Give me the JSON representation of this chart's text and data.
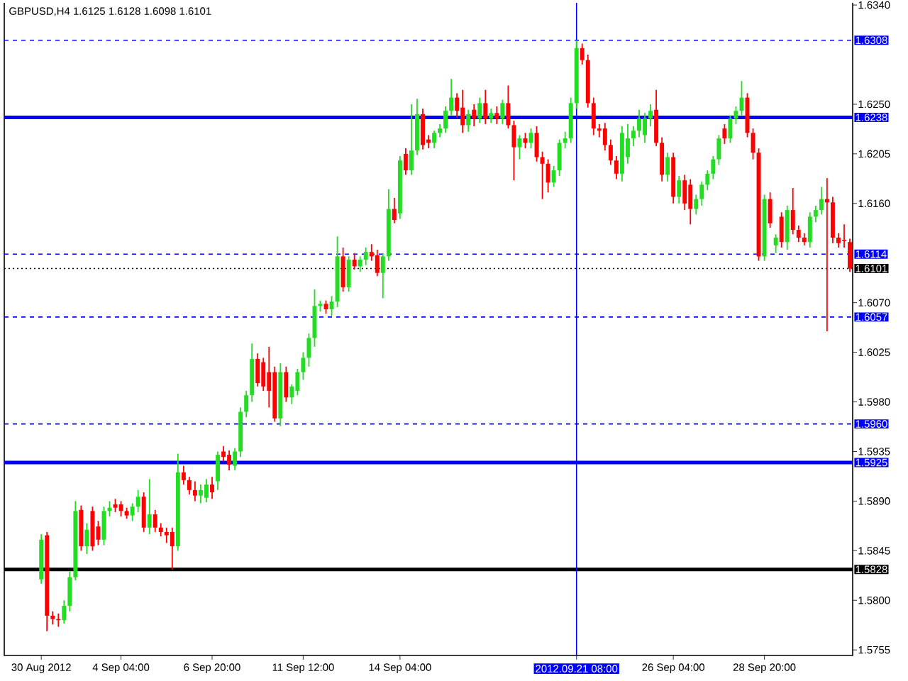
{
  "chart_data": {
    "type": "candlestick",
    "title": "GBPUSD,H4  1.6125 1.6128 1.6098 1.6101",
    "categories": [
      "30 Aug 2012",
      null,
      null,
      null,
      null,
      null,
      null,
      null,
      null,
      null,
      null,
      null,
      null,
      null,
      "4 Sep 04:00",
      null,
      null,
      null,
      null,
      null,
      null,
      null,
      null,
      null,
      null,
      null,
      null,
      null,
      null,
      null,
      "6 Sep 20:00",
      null,
      null,
      null,
      null,
      null,
      null,
      null,
      null,
      null,
      null,
      null,
      null,
      null,
      null,
      null,
      "11 Sep 12:00",
      null,
      null,
      null,
      null,
      null,
      null,
      null,
      null,
      null,
      null,
      null,
      null,
      null,
      null,
      null,
      null,
      "14 Sep 04:00",
      null,
      null,
      null,
      null,
      null,
      null,
      null,
      null,
      null,
      null,
      null,
      null,
      null,
      null,
      null,
      null,
      null,
      null,
      null,
      null,
      null,
      null,
      null,
      null,
      null,
      null,
      null,
      null,
      null,
      null,
      "2012.09.21 08:00",
      null,
      null,
      null,
      null,
      null,
      null,
      null,
      null,
      null,
      null,
      null,
      null,
      null,
      null,
      null,
      null,
      "26 Sep 04:00",
      null,
      null,
      null,
      null,
      null,
      null,
      null,
      null,
      null,
      null,
      null,
      null,
      null,
      null,
      null,
      "28 Sep 20:00",
      null,
      null,
      null,
      null,
      null,
      null,
      null,
      null,
      null,
      null,
      null,
      null,
      null,
      null,
      null
    ],
    "ohlc": [
      [
        1.5819,
        1.586,
        1.5815,
        1.5855
      ],
      [
        1.5859,
        1.5862,
        1.5772,
        1.5786
      ],
      [
        1.5786,
        1.579,
        1.5778,
        1.5783
      ],
      [
        1.5783,
        1.5788,
        1.5776,
        1.5782
      ],
      [
        1.5782,
        1.58,
        1.5779,
        1.5795
      ],
      [
        1.5795,
        1.5826,
        1.579,
        1.5821
      ],
      [
        1.5821,
        1.589,
        1.5818,
        1.5881
      ],
      [
        1.5882,
        1.5886,
        1.5845,
        1.5849
      ],
      [
        1.5849,
        1.587,
        1.5842,
        1.5864
      ],
      [
        1.5881,
        1.5885,
        1.5845,
        1.5849
      ],
      [
        1.5867,
        1.5872,
        1.585,
        1.5855
      ],
      [
        1.5855,
        1.5885,
        1.585,
        1.5881
      ],
      [
        1.5881,
        1.589,
        1.5876,
        1.5884
      ],
      [
        1.5887,
        1.5892,
        1.588,
        1.5884
      ],
      [
        1.5887,
        1.589,
        1.5876,
        1.5881
      ],
      [
        1.5881,
        1.5884,
        1.5874,
        1.5877
      ],
      [
        1.5877,
        1.5888,
        1.5872,
        1.5885
      ],
      [
        1.5885,
        1.59,
        1.588,
        1.5894
      ],
      [
        1.5894,
        1.5898,
        1.5862,
        1.5866
      ],
      [
        1.5866,
        1.591,
        1.586,
        1.5878
      ],
      [
        1.5878,
        1.5882,
        1.5862,
        1.5866
      ],
      [
        1.5866,
        1.587,
        1.5858,
        1.5862
      ],
      [
        1.5862,
        1.5866,
        1.5852,
        1.5859
      ],
      [
        1.5862,
        1.5866,
        1.5828,
        1.5849
      ],
      [
        1.5849,
        1.5933,
        1.5845,
        1.5916
      ],
      [
        1.5916,
        1.5922,
        1.5905,
        1.5909
      ],
      [
        1.5909,
        1.5912,
        1.5896,
        1.59
      ],
      [
        1.59,
        1.5908,
        1.589,
        1.5895
      ],
      [
        1.5895,
        1.5905,
        1.5888,
        1.59
      ],
      [
        1.5893,
        1.591,
        1.5889,
        1.5905
      ],
      [
        1.5905,
        1.5912,
        1.5892,
        1.5898
      ],
      [
        1.5908,
        1.5935,
        1.59,
        1.5932
      ],
      [
        1.5935,
        1.594,
        1.5926,
        1.593
      ],
      [
        1.5932,
        1.5936,
        1.5918,
        1.5923
      ],
      [
        1.5922,
        1.5938,
        1.5918,
        1.5935
      ],
      [
        1.5935,
        1.5975,
        1.593,
        1.5971
      ],
      [
        1.5971,
        1.599,
        1.5966,
        1.5986
      ],
      [
        1.5986,
        1.6033,
        1.598,
        1.6019
      ],
      [
        1.6019,
        1.6024,
        1.5994,
        1.5997
      ],
      [
        1.6016,
        1.602,
        1.599,
        1.5994
      ],
      [
        1.6007,
        1.603,
        1.5975,
        1.599
      ],
      [
        1.6007,
        1.6012,
        1.5962,
        1.5965
      ],
      [
        1.5965,
        1.6015,
        1.5958,
        1.6007
      ],
      [
        1.6007,
        1.6012,
        1.598,
        1.5984
      ],
      [
        1.5984,
        1.5996,
        1.5978,
        1.5994
      ],
      [
        1.599,
        1.601,
        1.5986,
        1.6007
      ],
      [
        1.6007,
        1.6025,
        1.6,
        1.602
      ],
      [
        1.602,
        1.6042,
        1.6012,
        1.6038
      ],
      [
        1.6038,
        1.6082,
        1.603,
        1.6067
      ],
      [
        1.6067,
        1.6072,
        1.6062,
        1.6069
      ],
      [
        1.6069,
        1.6072,
        1.606,
        1.6064
      ],
      [
        1.6064,
        1.6076,
        1.6058,
        1.6071
      ],
      [
        1.6071,
        1.613,
        1.6066,
        1.6112
      ],
      [
        1.6112,
        1.612,
        1.608,
        1.6084
      ],
      [
        1.6084,
        1.6112,
        1.608,
        1.6109
      ],
      [
        1.6109,
        1.6115,
        1.61,
        1.6103
      ],
      [
        1.6103,
        1.6112,
        1.6098,
        1.6109
      ],
      [
        1.6109,
        1.612,
        1.6104,
        1.6116
      ],
      [
        1.6116,
        1.6123,
        1.6108,
        1.6112
      ],
      [
        1.6113,
        1.6118,
        1.6094,
        1.6097
      ],
      [
        1.6097,
        1.6115,
        1.6074,
        1.6112
      ],
      [
        1.6112,
        1.6173,
        1.6108,
        1.6155
      ],
      [
        1.6155,
        1.6165,
        1.6142,
        1.6145
      ],
      [
        1.6151,
        1.6203,
        1.6146,
        1.6199
      ],
      [
        1.6205,
        1.621,
        1.6186,
        1.619
      ],
      [
        1.619,
        1.625,
        1.6186,
        1.6208
      ],
      [
        1.6208,
        1.6255,
        1.6204,
        1.6241
      ],
      [
        1.6241,
        1.6246,
        1.6209,
        1.6213
      ],
      [
        1.6218,
        1.6222,
        1.621,
        1.6215
      ],
      [
        1.6215,
        1.6226,
        1.621,
        1.6224
      ],
      [
        1.6224,
        1.6232,
        1.622,
        1.6228
      ],
      [
        1.6228,
        1.6248,
        1.6224,
        1.6244
      ],
      [
        1.6244,
        1.6273,
        1.624,
        1.6256
      ],
      [
        1.6256,
        1.626,
        1.6238,
        1.6244
      ],
      [
        1.6247,
        1.6263,
        1.6224,
        1.6231
      ],
      [
        1.6231,
        1.6245,
        1.6225,
        1.6241
      ],
      [
        1.6245,
        1.625,
        1.623,
        1.6237
      ],
      [
        1.6237,
        1.6256,
        1.6233,
        1.6251
      ],
      [
        1.6251,
        1.6263,
        1.6232,
        1.6237
      ],
      [
        1.6237,
        1.6246,
        1.6233,
        1.6242
      ],
      [
        1.6242,
        1.6248,
        1.6232,
        1.6237
      ],
      [
        1.6237,
        1.6254,
        1.6232,
        1.6251
      ],
      [
        1.6251,
        1.6267,
        1.6228,
        1.6231
      ],
      [
        1.6231,
        1.6235,
        1.6181,
        1.6211
      ],
      [
        1.6211,
        1.6222,
        1.62,
        1.6219
      ],
      [
        1.6219,
        1.6224,
        1.621,
        1.6215
      ],
      [
        1.6215,
        1.6228,
        1.621,
        1.6224
      ],
      [
        1.6224,
        1.623,
        1.6198,
        1.6202
      ],
      [
        1.6202,
        1.6207,
        1.6164,
        1.6196
      ],
      [
        1.6196,
        1.62,
        1.617,
        1.6179
      ],
      [
        1.6179,
        1.6194,
        1.6175,
        1.619
      ],
      [
        1.619,
        1.6218,
        1.6185,
        1.6215
      ],
      [
        1.6215,
        1.6225,
        1.621,
        1.6219
      ],
      [
        1.6219,
        1.6256,
        1.6215,
        1.6251
      ],
      [
        1.6251,
        1.6308,
        1.6246,
        1.6301
      ],
      [
        1.6301,
        1.6305,
        1.6286,
        1.629
      ],
      [
        1.629,
        1.6295,
        1.6247,
        1.6251
      ],
      [
        1.6251,
        1.6256,
        1.6222,
        1.6228
      ],
      [
        1.6228,
        1.6232,
        1.622,
        1.6226
      ],
      [
        1.6228,
        1.6233,
        1.6208,
        1.6213
      ],
      [
        1.6213,
        1.6218,
        1.6195,
        1.6199
      ],
      [
        1.6199,
        1.6203,
        1.6182,
        1.6187
      ],
      [
        1.6187,
        1.623,
        1.618,
        1.6224
      ],
      [
        1.6202,
        1.6232,
        1.6196,
        1.6219
      ],
      [
        1.6219,
        1.623,
        1.6212,
        1.6226
      ],
      [
        1.6226,
        1.6245,
        1.622,
        1.6237
      ],
      [
        1.6222,
        1.6242,
        1.6215,
        1.6237
      ],
      [
        1.6237,
        1.625,
        1.623,
        1.6244
      ],
      [
        1.6245,
        1.6263,
        1.6212,
        1.6215
      ],
      [
        1.6215,
        1.622,
        1.618,
        1.6186
      ],
      [
        1.6186,
        1.6206,
        1.618,
        1.6202
      ],
      [
        1.6202,
        1.6206,
        1.616,
        1.6166
      ],
      [
        1.6166,
        1.6185,
        1.616,
        1.6181
      ],
      [
        1.6181,
        1.6186,
        1.6154,
        1.616
      ],
      [
        1.6177,
        1.6182,
        1.6141,
        1.6155
      ],
      [
        1.6155,
        1.6168,
        1.615,
        1.6164
      ],
      [
        1.6164,
        1.618,
        1.6158,
        1.6177
      ],
      [
        1.6177,
        1.619,
        1.6172,
        1.6187
      ],
      [
        1.6187,
        1.6203,
        1.6182,
        1.62
      ],
      [
        1.62,
        1.6222,
        1.6195,
        1.6219
      ],
      [
        1.6228,
        1.6232,
        1.6214,
        1.6219
      ],
      [
        1.6219,
        1.624,
        1.6215,
        1.6237
      ],
      [
        1.6237,
        1.6248,
        1.6232,
        1.6244
      ],
      [
        1.6244,
        1.6271,
        1.624,
        1.6256
      ],
      [
        1.6256,
        1.626,
        1.622,
        1.6224
      ],
      [
        1.6224,
        1.6228,
        1.62,
        1.6206
      ],
      [
        1.6206,
        1.621,
        1.6108,
        1.6112
      ],
      [
        1.6112,
        1.6168,
        1.6108,
        1.6164
      ],
      [
        1.6164,
        1.617,
        1.6138,
        1.6142
      ],
      [
        1.6122,
        1.6132,
        1.6115,
        1.6129
      ],
      [
        1.6148,
        1.6152,
        1.612,
        1.6125
      ],
      [
        1.6125,
        1.6158,
        1.6118,
        1.6154
      ],
      [
        1.6154,
        1.6174,
        1.6132,
        1.6136
      ],
      [
        1.6136,
        1.614,
        1.6125,
        1.6129
      ],
      [
        1.6129,
        1.6133,
        1.6122,
        1.6125
      ],
      [
        1.6125,
        1.6152,
        1.612,
        1.6148
      ],
      [
        1.6148,
        1.6158,
        1.6143,
        1.6154
      ],
      [
        1.6154,
        1.6175,
        1.615,
        1.6164
      ],
      [
        1.6164,
        1.6183,
        1.6044,
        1.6161
      ],
      [
        1.6161,
        1.6166,
        1.6124,
        1.6129
      ],
      [
        1.6129,
        1.6133,
        1.612,
        1.6124
      ],
      [
        1.6127,
        1.6141,
        1.612,
        1.6126
      ],
      [
        1.6125,
        1.6128,
        1.6098,
        1.6101
      ]
    ],
    "ylim": [
      1.575,
      1.6342
    ],
    "yticks": [
      {
        "value": 1.634,
        "label": "1.6340"
      },
      {
        "value": 1.625,
        "label": "1.6250"
      },
      1.6205,
      {
        "value": 1.616,
        "label": "1.6160"
      },
      {
        "value": 1.607,
        "label": "1.6070"
      },
      1.6025,
      {
        "value": 1.598,
        "label": "1.5980"
      },
      1.5935,
      {
        "value": 1.589,
        "label": "1.5890"
      },
      1.5845,
      {
        "value": 1.58,
        "label": "1.5800"
      },
      1.5755
    ],
    "ref_lines": [
      {
        "axis": "y",
        "value": 1.6308,
        "label": "1.6308",
        "color": "#0000ff",
        "line_style": "dashed"
      },
      {
        "axis": "y",
        "value": 1.6238,
        "label": "1.6238",
        "color": "#0000ff",
        "line_style": "solid"
      },
      {
        "axis": "y",
        "value": 1.6114,
        "label": "1.6114",
        "color": "#0000ff",
        "line_style": "dashed"
      },
      {
        "axis": "y",
        "value": 1.6101,
        "label": "1.6101",
        "color": "#000000",
        "line_style": "dotted"
      },
      {
        "axis": "y",
        "value": 1.6057,
        "label": "1.6057",
        "color": "#0000ff",
        "line_style": "dashed"
      },
      {
        "axis": "y",
        "value": 1.596,
        "label": "1.5960",
        "color": "#0000ff",
        "line_style": "dashed"
      },
      {
        "axis": "y",
        "value": 1.5925,
        "label": "1.5925",
        "color": "#0000ff",
        "line_style": "solid"
      },
      {
        "axis": "y",
        "value": 1.5828,
        "label": "1.5828",
        "color": "#000000",
        "line_style": "solid"
      },
      {
        "axis": "x",
        "value": "2012.09.21 08:00",
        "color": "#0000ff",
        "line_style": "solid"
      }
    ]
  }
}
